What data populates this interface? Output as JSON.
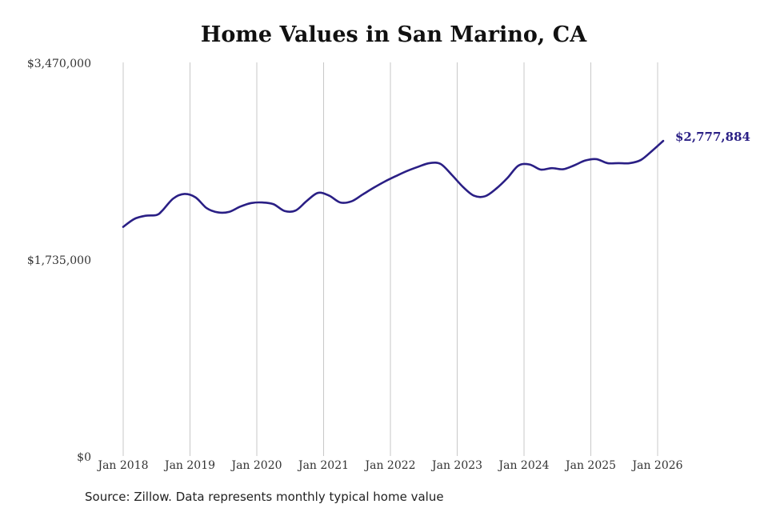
{
  "chart_data": {
    "type": "line",
    "title": "Home Values in San Marino, CA",
    "source_note": "Source: Zillow. Data represents monthly typical home value",
    "xlabel": "",
    "ylabel": "",
    "x_tick_labels": [
      "Jan 2018",
      "Jan 2019",
      "Jan 2020",
      "Jan 2021",
      "Jan 2022",
      "Jan 2023",
      "Jan 2024",
      "Jan 2025",
      "Jan 2026"
    ],
    "y_tick_labels": [
      "$0",
      "$1,735,000",
      "$3,470,000"
    ],
    "y_tick_values": [
      0,
      1735000,
      3470000
    ],
    "ylim": [
      0,
      3470000
    ],
    "xlim": [
      "2018-01",
      "2026-02"
    ],
    "grid": "vertical lines at each January",
    "line_color": "#2a1f85",
    "grid_color": "#c8c8c8",
    "end_label": "$2,777,884",
    "series": [
      {
        "x": [
          "2018-01",
          "2018-03",
          "2018-05",
          "2018-07",
          "2018-08",
          "2018-10",
          "2018-12",
          "2019-02",
          "2019-04",
          "2019-06",
          "2019-08",
          "2019-10",
          "2019-12",
          "2020-02",
          "2020-04",
          "2020-06",
          "2020-08",
          "2020-10",
          "2020-12",
          "2021-02",
          "2021-04",
          "2021-06",
          "2021-08",
          "2021-10",
          "2021-12",
          "2022-02",
          "2022-04",
          "2022-06",
          "2022-08",
          "2022-10",
          "2022-12",
          "2023-02",
          "2023-04",
          "2023-06",
          "2023-08",
          "2023-10",
          "2023-12",
          "2024-02",
          "2024-04",
          "2024-06",
          "2024-08",
          "2024-10",
          "2024-12",
          "2025-02",
          "2025-04",
          "2025-06",
          "2025-08",
          "2025-10",
          "2025-12",
          "2026-02"
        ],
        "values": [
          2020000,
          2090000,
          2118000,
          2125000,
          2162000,
          2270000,
          2310000,
          2280000,
          2185000,
          2148000,
          2152000,
          2198000,
          2230000,
          2235000,
          2220000,
          2160000,
          2165000,
          2250000,
          2320000,
          2295000,
          2235000,
          2245000,
          2305000,
          2365000,
          2420000,
          2468000,
          2513000,
          2550000,
          2582000,
          2575000,
          2480000,
          2374000,
          2295000,
          2290000,
          2357000,
          2450000,
          2560000,
          2570000,
          2525000,
          2538000,
          2528000,
          2562000,
          2605000,
          2617000,
          2582000,
          2582000,
          2582000,
          2610000,
          2690000,
          2777884
        ]
      }
    ]
  }
}
